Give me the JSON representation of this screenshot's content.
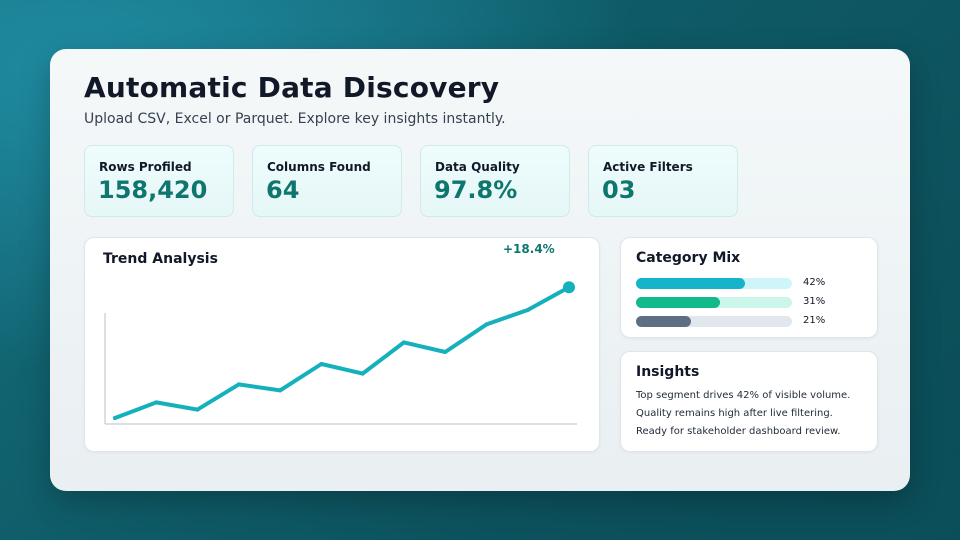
{
  "header": {
    "title": "Automatic Data Discovery",
    "subtitle": "Upload CSV, Excel or Parquet. Explore key insights instantly."
  },
  "stats": [
    {
      "label": "Rows Profiled",
      "value": "158,420"
    },
    {
      "label": "Columns Found",
      "value": "64"
    },
    {
      "label": "Data Quality",
      "value": "97.8%"
    },
    {
      "label": "Active Filters",
      "value": "03"
    }
  ],
  "trend": {
    "title": "Trend Analysis",
    "delta_label": "+18.4%",
    "line_color": "#14b1bd"
  },
  "chart_data": {
    "type": "line",
    "title": "Trend Analysis",
    "x": [
      1,
      2,
      3,
      4,
      5,
      6,
      7,
      8,
      9,
      10,
      11,
      12
    ],
    "series": [
      {
        "values": [
          5,
          18,
          12,
          33,
          28,
          50,
          42,
          68,
          60,
          83,
          95,
          114
        ]
      }
    ],
    "ylim": [
      0,
      130
    ],
    "annotations": [
      "+18.4%"
    ],
    "grid": false,
    "legend": "none"
  },
  "category_mix": {
    "title": "Category Mix",
    "items": [
      {
        "pct_label": "42%",
        "fraction": 0.7,
        "fill": "#15b4cb",
        "track": "#cdf5fa"
      },
      {
        "pct_label": "31%",
        "fraction": 0.54,
        "fill": "#12b98c",
        "track": "#cdf6ea"
      },
      {
        "pct_label": "21%",
        "fraction": 0.35,
        "fill": "#5f6f82",
        "track": "#e2e7ed"
      }
    ]
  },
  "insights": {
    "title": "Insights",
    "lines": [
      "Top segment drives 42% of visible volume.",
      "Quality remains high after live filtering.",
      "Ready for stakeholder dashboard review."
    ]
  }
}
